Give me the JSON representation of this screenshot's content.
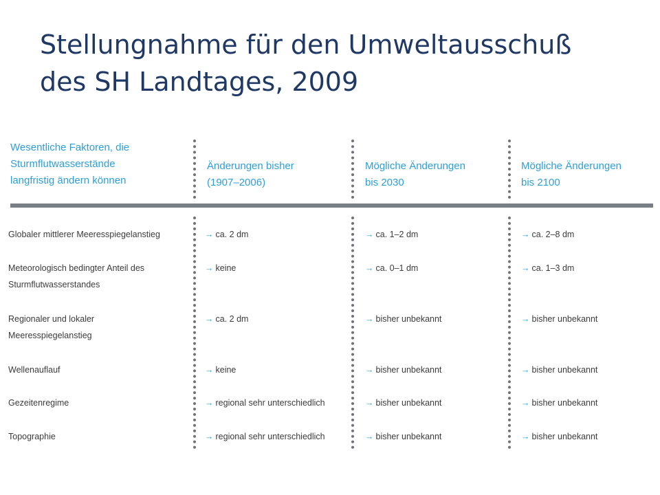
{
  "title": {
    "line1": "Stellungnahme für den Umweltausschuß",
    "line2": "des SH Landtages, 2009"
  },
  "table": {
    "headers": [
      {
        "lines": [
          "Wesentliche Faktoren, die",
          "Sturmflutwasserstände",
          "langfristig ändern können"
        ]
      },
      {
        "lines": [
          "Änderungen bisher",
          "(1907–2006)"
        ]
      },
      {
        "lines": [
          "Mögliche Änderungen",
          "bis 2030"
        ]
      },
      {
        "lines": [
          "Mögliche Änderungen",
          "bis 2100"
        ]
      }
    ],
    "arrow_glyph": "→",
    "rows": [
      {
        "label": [
          "Globaler mittlerer Meeresspiegelanstieg"
        ],
        "bisher": "ca. 2 dm",
        "bis2030": "ca. 1–2 dm",
        "bis2100": "ca. 2–8 dm"
      },
      {
        "label": [
          "Meteorologisch bedingter Anteil des",
          "Sturmflutwasserstandes"
        ],
        "bisher": "keine",
        "bis2030": "ca. 0–1 dm",
        "bis2100": "ca. 1–3 dm"
      },
      {
        "label": [
          "Regionaler und lokaler",
          "Meeresspiegelanstieg"
        ],
        "bisher": "ca. 2 dm",
        "bis2030": "bisher unbekannt",
        "bis2100": "bisher unbekannt"
      },
      {
        "label": [
          "Wellenauflauf"
        ],
        "bisher": "keine",
        "bis2030": "bisher unbekannt",
        "bis2100": "bisher unbekannt"
      },
      {
        "label": [
          "Gezeitenregime"
        ],
        "bisher": "regional sehr unterschiedlich",
        "bis2030": "bisher unbekannt",
        "bis2100": "bisher unbekannt"
      },
      {
        "label": [
          "Topographie"
        ],
        "bisher": "regional sehr unterschiedlich",
        "bis2030": "bisher unbekannt",
        "bis2100": "bisher unbekannt"
      }
    ],
    "colors": {
      "header_text": "#2e9fd6",
      "body_text": "#3b3b3b",
      "rule": "#7a7f85",
      "title": "#1f3864"
    }
  }
}
